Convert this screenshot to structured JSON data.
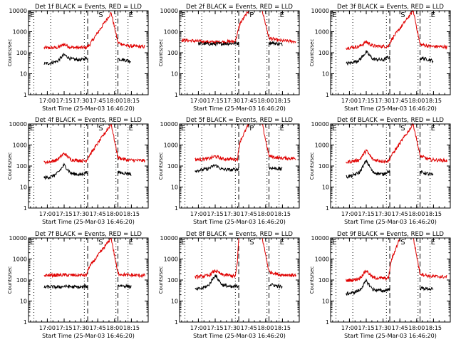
{
  "chart_data": [
    {
      "type": "line",
      "title": "Det 1f BLACK = Events, RED = LLD",
      "xlabel": "Start Time (25-Mar-03 16:46:20)",
      "ylabel": "Counts/sec",
      "x_ticks": [
        "17:00",
        "17:15",
        "17:30",
        "17:45",
        "18:00",
        "18:15"
      ],
      "y_ticks": [
        "1",
        "10",
        "100",
        "1000",
        "10000"
      ],
      "ylim": [
        1,
        10000
      ],
      "yscale": "log",
      "markers": [
        "E",
        "S",
        "E"
      ],
      "red_gap": [
        16.5,
        16.8
      ],
      "black_gap": [
        17.6,
        18.05
      ],
      "series": [
        {
          "name": "RED = LLD",
          "color": "#e00000",
          "x": [
            16.95,
            17.05,
            17.15,
            17.25,
            17.35,
            17.5,
            17.58,
            17.62,
            17.95,
            18.05,
            18.2,
            18.45
          ],
          "y": [
            170,
            170,
            175,
            250,
            180,
            175,
            175,
            220,
            8000,
            300,
            210,
            190
          ]
        },
        {
          "name": "BLACK = Events",
          "color": "#000000",
          "x": [
            16.95,
            17.05,
            17.15,
            17.25,
            17.35,
            17.5,
            17.57,
            18.08,
            18.2,
            18.25
          ],
          "y": [
            30,
            32,
            40,
            80,
            50,
            45,
            55,
            50,
            42,
            38
          ]
        }
      ]
    },
    {
      "type": "line",
      "title": "Det 2f BLACK = Events, RED = LLD",
      "xlabel": "Start Time (25-Mar-03 16:46:20)",
      "ylabel": "Counts/sec",
      "x_ticks": [
        "17:00",
        "17:15",
        "17:30",
        "17:45",
        "18:00",
        "18:15"
      ],
      "y_ticks": [
        "1",
        "10",
        "100",
        "1000",
        "10000"
      ],
      "ylim": [
        1,
        10000
      ],
      "yscale": "log",
      "markers": [
        "E",
        "P",
        "E"
      ],
      "red_gap": [
        16.5,
        16.8
      ],
      "black_gap": [
        17.6,
        18.05
      ],
      "series": [
        {
          "name": "RED = LLD",
          "color": "#e00000",
          "x": [
            16.75,
            17.0,
            17.2,
            17.4,
            17.55,
            17.62,
            17.75,
            17.95,
            18.05,
            18.2,
            18.45
          ],
          "y": [
            400,
            350,
            320,
            330,
            350,
            2500,
            10000,
            10000,
            500,
            380,
            340
          ]
        },
        {
          "name": "BLACK = Events",
          "color": "#000000",
          "x": [
            17.0,
            17.2,
            17.4,
            17.55,
            18.08,
            18.25
          ],
          "y": [
            270,
            260,
            270,
            280,
            300,
            250
          ]
        }
      ]
    },
    {
      "type": "line",
      "title": "Det 3f BLACK = Events, RED = LLD",
      "xlabel": "Start Time (25-Mar-03 16:46:20)",
      "ylabel": "Counts/sec",
      "x_ticks": [
        "17:00",
        "17:15",
        "17:30",
        "17:45",
        "18:00",
        "18:15"
      ],
      "y_ticks": [
        "1",
        "10",
        "100",
        "1000",
        "10000"
      ],
      "ylim": [
        1,
        10000
      ],
      "yscale": "log",
      "markers": [
        "E",
        "S",
        "E"
      ],
      "red_gap": [
        16.5,
        16.8
      ],
      "black_gap": [
        17.6,
        18.05
      ],
      "series": [
        {
          "name": "RED = LLD",
          "color": "#e00000",
          "x": [
            16.95,
            17.05,
            17.15,
            17.25,
            17.35,
            17.5,
            17.58,
            17.62,
            17.95,
            18.05,
            18.2,
            18.45
          ],
          "y": [
            170,
            180,
            200,
            330,
            210,
            200,
            200,
            400,
            10000,
            250,
            200,
            190
          ]
        },
        {
          "name": "BLACK = Events",
          "color": "#000000",
          "x": [
            16.95,
            17.05,
            17.15,
            17.25,
            17.35,
            17.5,
            17.57,
            18.08,
            18.2,
            18.25
          ],
          "y": [
            30,
            35,
            45,
            110,
            50,
            45,
            60,
            55,
            45,
            40
          ]
        }
      ]
    },
    {
      "type": "line",
      "title": "Det 4f BLACK = Events, RED = LLD",
      "xlabel": "Start Time (25-Mar-03 16:46:20)",
      "ylabel": "Counts/sec",
      "x_ticks": [
        "17:00",
        "17:15",
        "17:30",
        "17:45",
        "18:00",
        "18:15"
      ],
      "y_ticks": [
        "1",
        "10",
        "100",
        "1000",
        "10000"
      ],
      "ylim": [
        1,
        10000
      ],
      "yscale": "log",
      "markers": [
        "E",
        "S",
        "E"
      ],
      "red_gap": [
        16.5,
        16.8
      ],
      "black_gap": [
        17.6,
        18.05
      ],
      "series": [
        {
          "name": "RED = LLD",
          "color": "#e00000",
          "x": [
            16.95,
            17.05,
            17.15,
            17.25,
            17.35,
            17.5,
            17.58,
            17.62,
            17.95,
            18.05,
            18.2,
            18.45
          ],
          "y": [
            150,
            160,
            200,
            400,
            200,
            180,
            180,
            300,
            10000,
            250,
            190,
            180
          ]
        },
        {
          "name": "BLACK = Events",
          "color": "#000000",
          "x": [
            16.95,
            17.05,
            17.15,
            17.25,
            17.35,
            17.5,
            17.57,
            18.08,
            18.2,
            18.25
          ],
          "y": [
            28,
            30,
            45,
            110,
            45,
            38,
            50,
            48,
            45,
            40
          ]
        }
      ]
    },
    {
      "type": "line",
      "title": "Det 5f BLACK = Events, RED = LLD",
      "xlabel": "Start Time (25-Mar-03 16:46:20)",
      "ylabel": "Counts/sec",
      "x_ticks": [
        "17:00",
        "17:15",
        "17:30",
        "17:45",
        "18:00",
        "18:15"
      ],
      "y_ticks": [
        "1",
        "10",
        "100",
        "1000",
        "10000"
      ],
      "ylim": [
        1,
        10000
      ],
      "yscale": "log",
      "markers": [
        "E",
        "P",
        "E"
      ],
      "red_gap": [
        16.5,
        16.8
      ],
      "black_gap": [
        17.6,
        18.05
      ],
      "series": [
        {
          "name": "RED = LLD",
          "color": "#e00000",
          "x": [
            16.95,
            17.05,
            17.15,
            17.25,
            17.35,
            17.5,
            17.58,
            17.62,
            17.75,
            17.95,
            18.05,
            18.2,
            18.45
          ],
          "y": [
            200,
            210,
            220,
            290,
            220,
            210,
            210,
            1500,
            10000,
            10000,
            300,
            240,
            230
          ]
        },
        {
          "name": "BLACK = Events",
          "color": "#000000",
          "x": [
            16.95,
            17.05,
            17.15,
            17.25,
            17.35,
            17.5,
            17.57,
            18.08,
            18.2,
            18.25
          ],
          "y": [
            60,
            65,
            75,
            110,
            70,
            65,
            70,
            80,
            75,
            70
          ]
        }
      ]
    },
    {
      "type": "line",
      "title": "Det 6f BLACK = Events, RED = LLD",
      "xlabel": "Start Time (25-Mar-03 16:46:20)",
      "ylabel": "Counts/sec",
      "x_ticks": [
        "17:00",
        "17:15",
        "17:30",
        "17:45",
        "18:00",
        "18:15"
      ],
      "y_ticks": [
        "1",
        "10",
        "100",
        "1000",
        "10000"
      ],
      "ylim": [
        1,
        10000
      ],
      "yscale": "log",
      "markers": [
        "E",
        "S",
        "E"
      ],
      "red_gap": [
        16.5,
        16.8
      ],
      "black_gap": [
        17.6,
        18.05
      ],
      "series": [
        {
          "name": "RED = LLD",
          "color": "#e00000",
          "x": [
            16.95,
            17.05,
            17.15,
            17.25,
            17.35,
            17.5,
            17.58,
            17.62,
            17.95,
            18.05,
            18.2,
            18.45
          ],
          "y": [
            150,
            170,
            200,
            550,
            200,
            170,
            170,
            300,
            10000,
            300,
            200,
            180
          ]
        },
        {
          "name": "BLACK = Events",
          "color": "#000000",
          "x": [
            16.95,
            17.05,
            17.15,
            17.25,
            17.35,
            17.5,
            17.57,
            18.08,
            18.2,
            18.25
          ],
          "y": [
            30,
            35,
            50,
            180,
            50,
            40,
            55,
            50,
            40,
            35
          ]
        }
      ]
    },
    {
      "type": "line",
      "title": "Det 7f BLACK = Events, RED = LLD",
      "xlabel": "Start Time (25-Mar-03 16:46:20)",
      "ylabel": "Counts/sec",
      "x_ticks": [
        "17:00",
        "17:15",
        "17:30",
        "17:45",
        "18:00",
        "18:15"
      ],
      "y_ticks": [
        "1",
        "10",
        "100",
        "1000",
        "10000"
      ],
      "ylim": [
        1,
        10000
      ],
      "yscale": "log",
      "markers": [
        "E",
        "S",
        "E"
      ],
      "red_gap": [
        16.5,
        16.8
      ],
      "black_gap": [
        17.6,
        18.05
      ],
      "series": [
        {
          "name": "RED = LLD",
          "color": "#e00000",
          "x": [
            16.95,
            17.05,
            17.15,
            17.25,
            17.35,
            17.5,
            17.58,
            17.62,
            17.95,
            18.05,
            18.2,
            18.45
          ],
          "y": [
            165,
            170,
            170,
            175,
            170,
            170,
            170,
            400,
            10000,
            200,
            170,
            165
          ]
        },
        {
          "name": "BLACK = Events",
          "color": "#000000",
          "x": [
            16.95,
            17.05,
            17.15,
            17.25,
            17.35,
            17.5,
            17.57,
            18.08,
            18.2,
            18.25
          ],
          "y": [
            45,
            48,
            45,
            50,
            48,
            45,
            50,
            55,
            50,
            48
          ]
        }
      ]
    },
    {
      "type": "line",
      "title": "Det 8f BLACK = Events, RED = LLD",
      "xlabel": "Start Time (25-Mar-03 16:46:20)",
      "ylabel": "Counts/sec",
      "x_ticks": [
        "17:00",
        "17:15",
        "17:30",
        "17:45",
        "18:00",
        "18:15"
      ],
      "y_ticks": [
        "1",
        "10",
        "100",
        "1000",
        "10000"
      ],
      "ylim": [
        1,
        10000
      ],
      "yscale": "log",
      "markers": [
        "E",
        "S",
        "E"
      ],
      "red_gap": [
        16.5,
        16.8
      ],
      "black_gap": [
        17.6,
        18.05
      ],
      "series": [
        {
          "name": "RED = LLD",
          "color": "#e00000",
          "x": [
            16.95,
            17.05,
            17.15,
            17.25,
            17.35,
            17.5,
            17.55,
            17.58,
            17.6,
            17.95,
            18.05,
            18.2,
            18.45
          ],
          "y": [
            140,
            150,
            160,
            280,
            180,
            160,
            150,
            700,
            10000,
            10000,
            250,
            180,
            170
          ]
        },
        {
          "name": "BLACK = Events",
          "color": "#000000",
          "x": [
            16.95,
            17.05,
            17.15,
            17.25,
            17.35,
            17.5,
            17.55,
            18.08,
            18.2,
            18.25
          ],
          "y": [
            35,
            40,
            55,
            170,
            60,
            45,
            50,
            60,
            50,
            45
          ]
        }
      ]
    },
    {
      "type": "line",
      "title": "Det 9f BLACK = Events, RED = LLD",
      "xlabel": "Start Time (25-Mar-03 16:46:20)",
      "ylabel": "Counts/sec",
      "x_ticks": [
        "17:00",
        "17:15",
        "17:30",
        "17:45",
        "18:00",
        "18:15"
      ],
      "y_ticks": [
        "1",
        "10",
        "100",
        "1000",
        "10000"
      ],
      "ylim": [
        1,
        10000
      ],
      "yscale": "log",
      "markers": [
        "E",
        "S",
        "E"
      ],
      "red_gap": [
        16.5,
        16.8
      ],
      "black_gap": [
        17.6,
        18.05
      ],
      "series": [
        {
          "name": "RED = LLD",
          "color": "#e00000",
          "x": [
            16.95,
            17.05,
            17.15,
            17.25,
            17.35,
            17.5,
            17.58,
            17.62,
            17.75,
            17.95,
            18.05,
            18.2,
            18.45
          ],
          "y": [
            95,
            100,
            120,
            280,
            130,
            120,
            120,
            800,
            10000,
            10000,
            200,
            150,
            140
          ]
        },
        {
          "name": "BLACK = Events",
          "color": "#000000",
          "x": [
            16.95,
            17.05,
            17.15,
            17.25,
            17.35,
            17.5,
            17.57,
            18.08,
            18.2,
            18.25
          ],
          "y": [
            22,
            25,
            32,
            90,
            35,
            30,
            35,
            40,
            38,
            35
          ]
        }
      ]
    }
  ]
}
